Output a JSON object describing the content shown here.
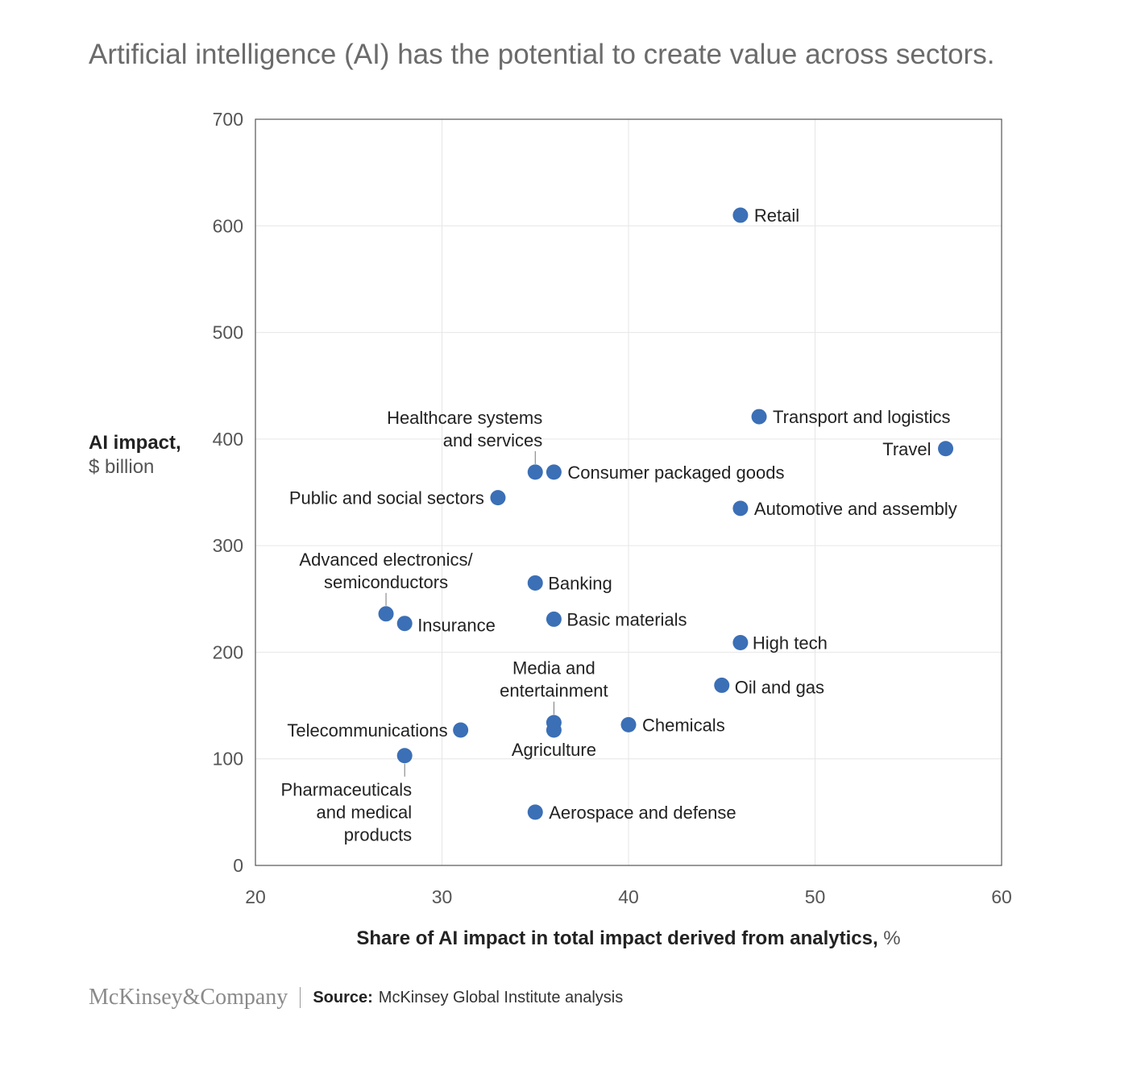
{
  "title": "Artificial intelligence (AI) has the potential to create value across sectors.",
  "footer": {
    "logo": "McKinsey&Company",
    "source_label": "Source:",
    "source_text": "McKinsey Global Institute analysis"
  },
  "chart_data": {
    "type": "scatter",
    "title": "Artificial intelligence (AI) has the potential to create value across sectors.",
    "xlabel": "Share of AI impact in total impact derived from analytics,",
    "xlabel_unit": "%",
    "ylabel": "AI impact,",
    "ylabel_unit": "$ billion",
    "xlim": [
      20,
      60
    ],
    "ylim": [
      0,
      700
    ],
    "xticks": [
      20,
      30,
      40,
      50,
      60
    ],
    "yticks": [
      0,
      100,
      200,
      300,
      400,
      500,
      600,
      700
    ],
    "grid": true,
    "marker_color": "#3b6fb6",
    "points": [
      {
        "name": "Retail",
        "x": 46,
        "y": 610
      },
      {
        "name": "Transport and logistics",
        "x": 47,
        "y": 421
      },
      {
        "name": "Travel",
        "x": 57,
        "y": 391
      },
      {
        "name": "Healthcare systems\nand services",
        "x": 35,
        "y": 369
      },
      {
        "name": "Consumer packaged goods",
        "x": 36,
        "y": 369
      },
      {
        "name": "Public and social sectors",
        "x": 33,
        "y": 345
      },
      {
        "name": "Automotive and assembly",
        "x": 46,
        "y": 335
      },
      {
        "name": "Banking",
        "x": 35,
        "y": 265
      },
      {
        "name": "Advanced electronics/\nsemiconductors",
        "x": 27,
        "y": 236
      },
      {
        "name": "Insurance",
        "x": 28,
        "y": 227
      },
      {
        "name": "Basic materials",
        "x": 36,
        "y": 231
      },
      {
        "name": "High tech",
        "x": 46,
        "y": 209
      },
      {
        "name": "Oil and gas",
        "x": 45,
        "y": 169
      },
      {
        "name": "Media and\nentertainment",
        "x": 36,
        "y": 134
      },
      {
        "name": "Agriculture",
        "x": 36,
        "y": 127
      },
      {
        "name": "Chemicals",
        "x": 40,
        "y": 132
      },
      {
        "name": "Telecommunications",
        "x": 31,
        "y": 127
      },
      {
        "name": "Pharmaceuticals\nand medical\nproducts",
        "x": 28,
        "y": 103
      },
      {
        "name": "Aerospace and defense",
        "x": 35,
        "y": 50
      }
    ]
  }
}
